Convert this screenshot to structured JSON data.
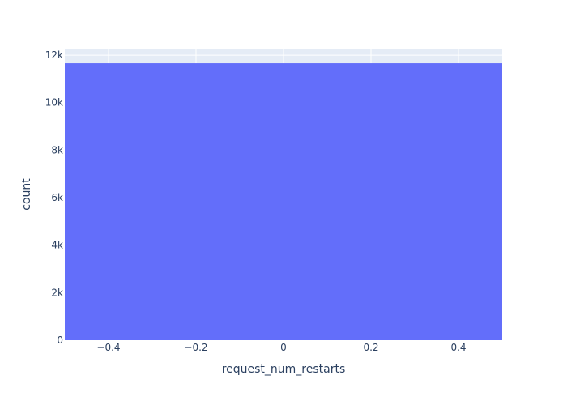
{
  "chart_data": {
    "type": "bar",
    "title": "",
    "xlabel": "request_num_restarts",
    "ylabel": "count",
    "grid": true,
    "legend": "none",
    "xlim": [
      -0.5,
      0.5
    ],
    "ylim": [
      0,
      12276
    ],
    "x_ticks": [
      -0.4,
      -0.2,
      0,
      0.2,
      0.4
    ],
    "x_tick_labels": [
      "−0.4",
      "−0.2",
      "0",
      "0.2",
      "0.4"
    ],
    "y_ticks": [
      0,
      2000,
      4000,
      6000,
      8000,
      10000,
      12000
    ],
    "y_tick_labels": [
      "0",
      "2k",
      "4k",
      "6k",
      "8k",
      "10k",
      "12k"
    ],
    "categories": [
      0
    ],
    "values": [
      11660
    ],
    "colors": {
      "bar": "#636efa",
      "plot_background": "#e5ecf6",
      "gridline": "#ffffff",
      "text": "#2a3f5f"
    }
  }
}
